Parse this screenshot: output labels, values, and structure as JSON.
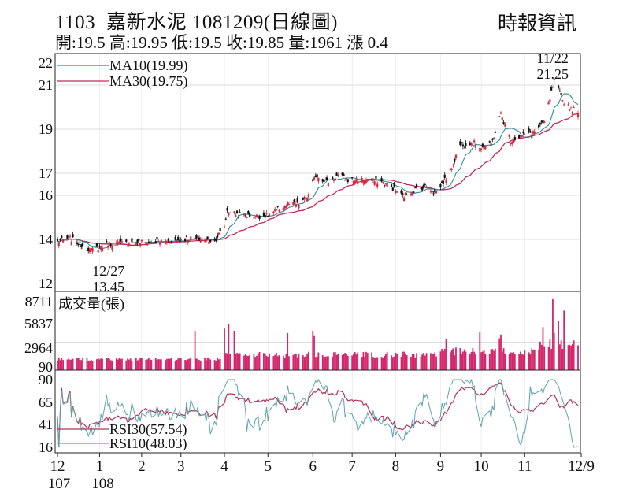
{
  "header": {
    "stock_code": "1103",
    "stock_name": "嘉新水泥",
    "date_title": "1081209(日線圖)",
    "ohlc_line": "開:19.5 高:19.95 低:19.5 收:19.85 量:1961 漲 0.4",
    "source": "時報資訊"
  },
  "colors": {
    "ma10": "#2a8a9c",
    "ma30": "#c22a5a",
    "up": "#d42a3c",
    "down": "#111111",
    "volume": "#d4266a",
    "rsi10": "#5ea3b0",
    "rsi30": "#b33058",
    "grid": "#bbbbbb"
  },
  "chart_data": [
    {
      "type": "candlestick",
      "title": "1103 嘉新水泥 1081209(日線圖)",
      "ylabels": [
        "22",
        "21",
        "19",
        "17",
        "16",
        "14",
        "12"
      ],
      "ylim": [
        12,
        22
      ],
      "grid": true,
      "legend": [
        {
          "name": "MA10(19.99)",
          "color": "#2a8a9c"
        },
        {
          "name": "MA30(19.75)",
          "color": "#c22a5a"
        }
      ],
      "annotations": [
        {
          "text": "11/22",
          "sub": "21.25",
          "at": "high"
        },
        {
          "text": "12/27",
          "sub": "13.45",
          "at": "low"
        }
      ],
      "anchors": [
        [
          "2018-12-03",
          13.9
        ],
        [
          "2018-12-12",
          14.05
        ],
        [
          "2018-12-20",
          13.75
        ],
        [
          "2018-12-27",
          13.5
        ],
        [
          "2019-01-08",
          13.8
        ],
        [
          "2019-01-25",
          13.85
        ],
        [
          "2019-02-25",
          13.95
        ],
        [
          "2019-03-06",
          14.05
        ],
        [
          "2019-03-25",
          13.95
        ],
        [
          "2019-04-01",
          14.6
        ],
        [
          "2019-04-03",
          15.3
        ],
        [
          "2019-04-12",
          15.1
        ],
        [
          "2019-04-25",
          15.05
        ],
        [
          "2019-05-02",
          15.1
        ],
        [
          "2019-05-16",
          15.6
        ],
        [
          "2019-05-24",
          15.6
        ],
        [
          "2019-05-31",
          16.0
        ],
        [
          "2019-06-05",
          16.9
        ],
        [
          "2019-06-14",
          16.6
        ],
        [
          "2019-06-21",
          16.9
        ],
        [
          "2019-06-28",
          16.7
        ],
        [
          "2019-07-10",
          16.7
        ],
        [
          "2019-07-22",
          16.6
        ],
        [
          "2019-07-31",
          16.3
        ],
        [
          "2019-08-06",
          15.95
        ],
        [
          "2019-08-14",
          16.25
        ],
        [
          "2019-08-23",
          16.4
        ],
        [
          "2019-08-29",
          16.1
        ],
        [
          "2019-09-02",
          16.4
        ],
        [
          "2019-09-09",
          17.1
        ],
        [
          "2019-09-16",
          18.3
        ],
        [
          "2019-09-25",
          18.4
        ],
        [
          "2019-10-01",
          18.2
        ],
        [
          "2019-10-08",
          18.3
        ],
        [
          "2019-10-15",
          19.7
        ],
        [
          "2019-10-22",
          18.5
        ],
        [
          "2019-11-01",
          18.75
        ],
        [
          "2019-11-08",
          18.9
        ],
        [
          "2019-11-15",
          19.3
        ],
        [
          "2019-11-22",
          21.2
        ],
        [
          "2019-11-28",
          20.3
        ],
        [
          "2019-12-05",
          19.9
        ],
        [
          "2019-12-09",
          19.85
        ]
      ]
    },
    {
      "type": "bar",
      "title": "成交量(張)",
      "ylabels": [
        "8711",
        "5837",
        "2964",
        "90"
      ],
      "ylim": [
        90,
        8711
      ],
      "spikes": [
        [
          "2019-03-11",
          4500
        ],
        [
          "2019-04-01",
          4800
        ],
        [
          "2019-04-04",
          5400
        ],
        [
          "2019-04-08",
          4500
        ],
        [
          "2019-05-16",
          4200
        ],
        [
          "2019-06-03",
          4500
        ],
        [
          "2019-06-04",
          3800
        ],
        [
          "2019-09-06",
          3400
        ],
        [
          "2019-09-30",
          4300
        ],
        [
          "2019-10-14",
          3500
        ],
        [
          "2019-10-15",
          4000
        ],
        [
          "2019-11-14",
          5000
        ],
        [
          "2019-11-21",
          8711
        ],
        [
          "2019-11-22",
          4200
        ],
        [
          "2019-11-25",
          5800
        ],
        [
          "2019-11-29",
          7200
        ]
      ]
    },
    {
      "type": "line",
      "title": "RSI",
      "ylabels": [
        "90",
        "65",
        "41",
        "16"
      ],
      "ylim": [
        16,
        90
      ],
      "series": [
        {
          "name": "RSI30(57.54)",
          "color": "#b33058"
        },
        {
          "name": "RSI10(48.03)",
          "color": "#5ea3b0"
        }
      ]
    }
  ],
  "x_axis": {
    "months": [
      "12",
      "1",
      "2",
      "3",
      "4",
      "5",
      "6",
      "7",
      "8",
      "9",
      "10",
      "11",
      "12/9"
    ],
    "years": [
      "107",
      "108"
    ]
  }
}
